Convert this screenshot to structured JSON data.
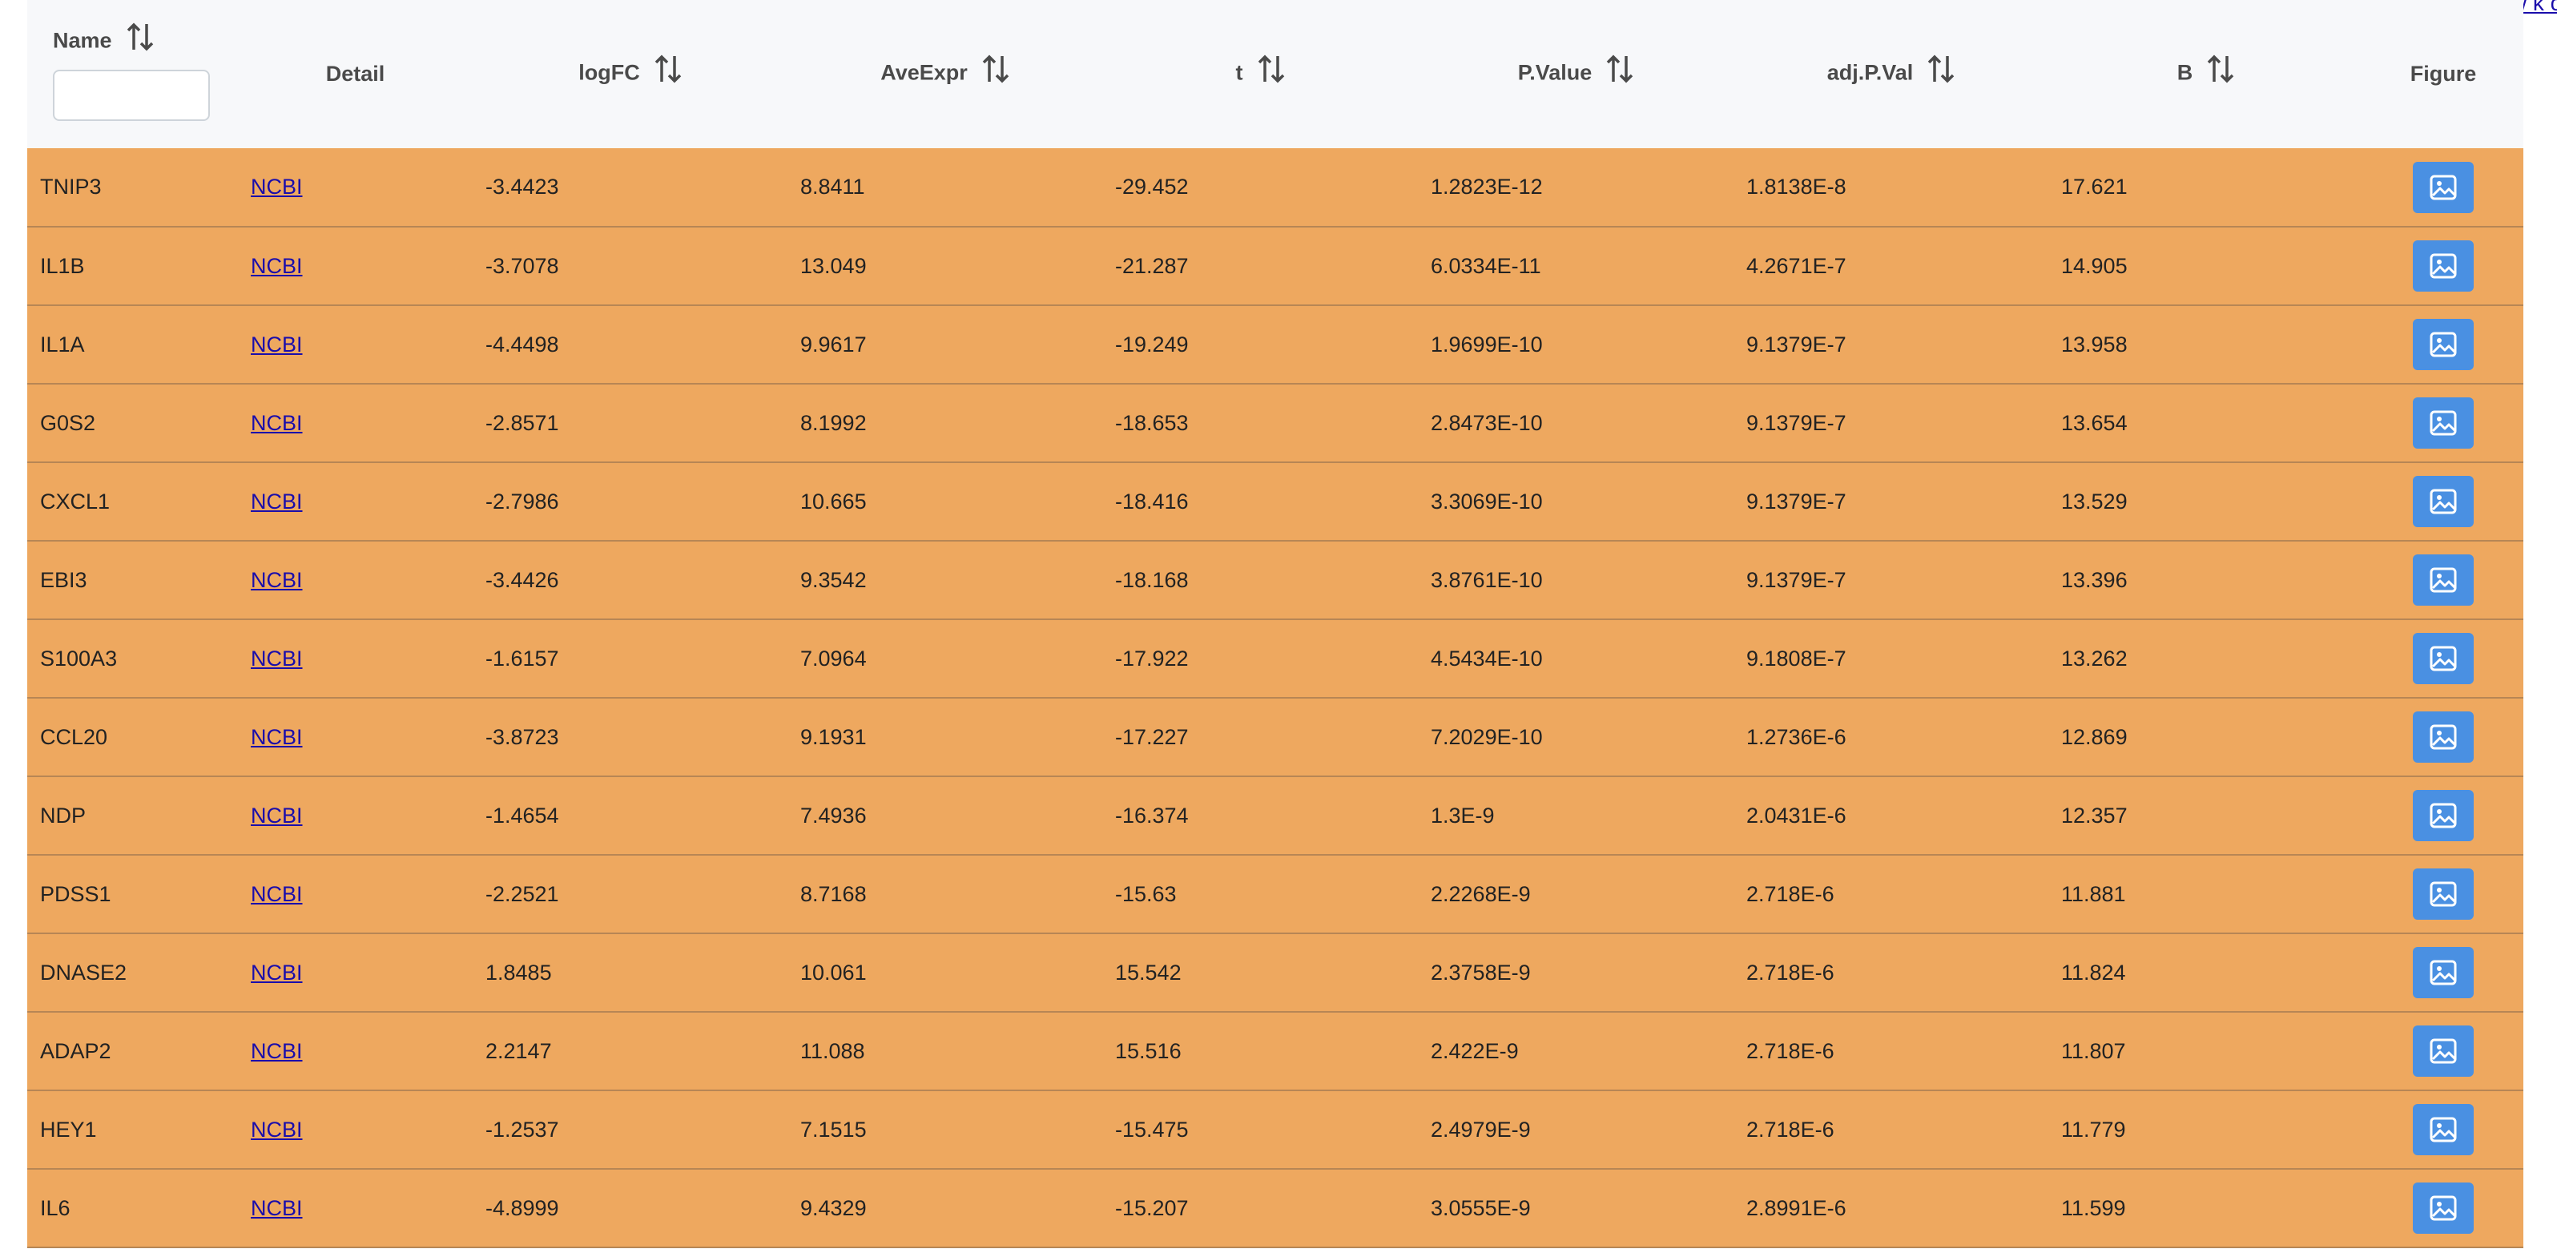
{
  "top_link": "Show k c",
  "columns": {
    "name": "Name",
    "detail": "Detail",
    "logfc": "logFC",
    "aveexpr": "AveExpr",
    "t": "t",
    "pvalue": "P.Value",
    "adjpval": "adj.P.Val",
    "b": "B",
    "figure": "Figure"
  },
  "filter": {
    "name_value": "",
    "name_placeholder": ""
  },
  "icons": {
    "sort": "sort-arrows-icon",
    "figure": "image-icon"
  },
  "colors": {
    "row_background": "#eea85f",
    "header_background": "#f7f8fa",
    "figure_button": "#4a90e2",
    "link": "#1a0dab"
  },
  "rows": [
    {
      "name": "TNIP3",
      "detail": "NCBI",
      "logfc": "-3.4423",
      "aveexpr": "8.8411",
      "t": "-29.452",
      "pvalue": "1.2823E-12",
      "adjpval": "1.8138E-8",
      "b": "17.621"
    },
    {
      "name": "IL1B",
      "detail": "NCBI",
      "logfc": "-3.7078",
      "aveexpr": "13.049",
      "t": "-21.287",
      "pvalue": "6.0334E-11",
      "adjpval": "4.2671E-7",
      "b": "14.905"
    },
    {
      "name": "IL1A",
      "detail": "NCBI",
      "logfc": "-4.4498",
      "aveexpr": "9.9617",
      "t": "-19.249",
      "pvalue": "1.9699E-10",
      "adjpval": "9.1379E-7",
      "b": "13.958"
    },
    {
      "name": "G0S2",
      "detail": "NCBI",
      "logfc": "-2.8571",
      "aveexpr": "8.1992",
      "t": "-18.653",
      "pvalue": "2.8473E-10",
      "adjpval": "9.1379E-7",
      "b": "13.654"
    },
    {
      "name": "CXCL1",
      "detail": "NCBI",
      "logfc": "-2.7986",
      "aveexpr": "10.665",
      "t": "-18.416",
      "pvalue": "3.3069E-10",
      "adjpval": "9.1379E-7",
      "b": "13.529"
    },
    {
      "name": "EBI3",
      "detail": "NCBI",
      "logfc": "-3.4426",
      "aveexpr": "9.3542",
      "t": "-18.168",
      "pvalue": "3.8761E-10",
      "adjpval": "9.1379E-7",
      "b": "13.396"
    },
    {
      "name": "S100A3",
      "detail": "NCBI",
      "logfc": "-1.6157",
      "aveexpr": "7.0964",
      "t": "-17.922",
      "pvalue": "4.5434E-10",
      "adjpval": "9.1808E-7",
      "b": "13.262"
    },
    {
      "name": "CCL20",
      "detail": "NCBI",
      "logfc": "-3.8723",
      "aveexpr": "9.1931",
      "t": "-17.227",
      "pvalue": "7.2029E-10",
      "adjpval": "1.2736E-6",
      "b": "12.869"
    },
    {
      "name": "NDP",
      "detail": "NCBI",
      "logfc": "-1.4654",
      "aveexpr": "7.4936",
      "t": "-16.374",
      "pvalue": "1.3E-9",
      "adjpval": "2.0431E-6",
      "b": "12.357"
    },
    {
      "name": "PDSS1",
      "detail": "NCBI",
      "logfc": "-2.2521",
      "aveexpr": "8.7168",
      "t": "-15.63",
      "pvalue": "2.2268E-9",
      "adjpval": "2.718E-6",
      "b": "11.881"
    },
    {
      "name": "DNASE2",
      "detail": "NCBI",
      "logfc": "1.8485",
      "aveexpr": "10.061",
      "t": "15.542",
      "pvalue": "2.3758E-9",
      "adjpval": "2.718E-6",
      "b": "11.824"
    },
    {
      "name": "ADAP2",
      "detail": "NCBI",
      "logfc": "2.2147",
      "aveexpr": "11.088",
      "t": "15.516",
      "pvalue": "2.422E-9",
      "adjpval": "2.718E-6",
      "b": "11.807"
    },
    {
      "name": "HEY1",
      "detail": "NCBI",
      "logfc": "-1.2537",
      "aveexpr": "7.1515",
      "t": "-15.475",
      "pvalue": "2.4979E-9",
      "adjpval": "2.718E-6",
      "b": "11.779"
    },
    {
      "name": "IL6",
      "detail": "NCBI",
      "logfc": "-4.8999",
      "aveexpr": "9.4329",
      "t": "-15.207",
      "pvalue": "3.0555E-9",
      "adjpval": "2.8991E-6",
      "b": "11.599"
    }
  ]
}
